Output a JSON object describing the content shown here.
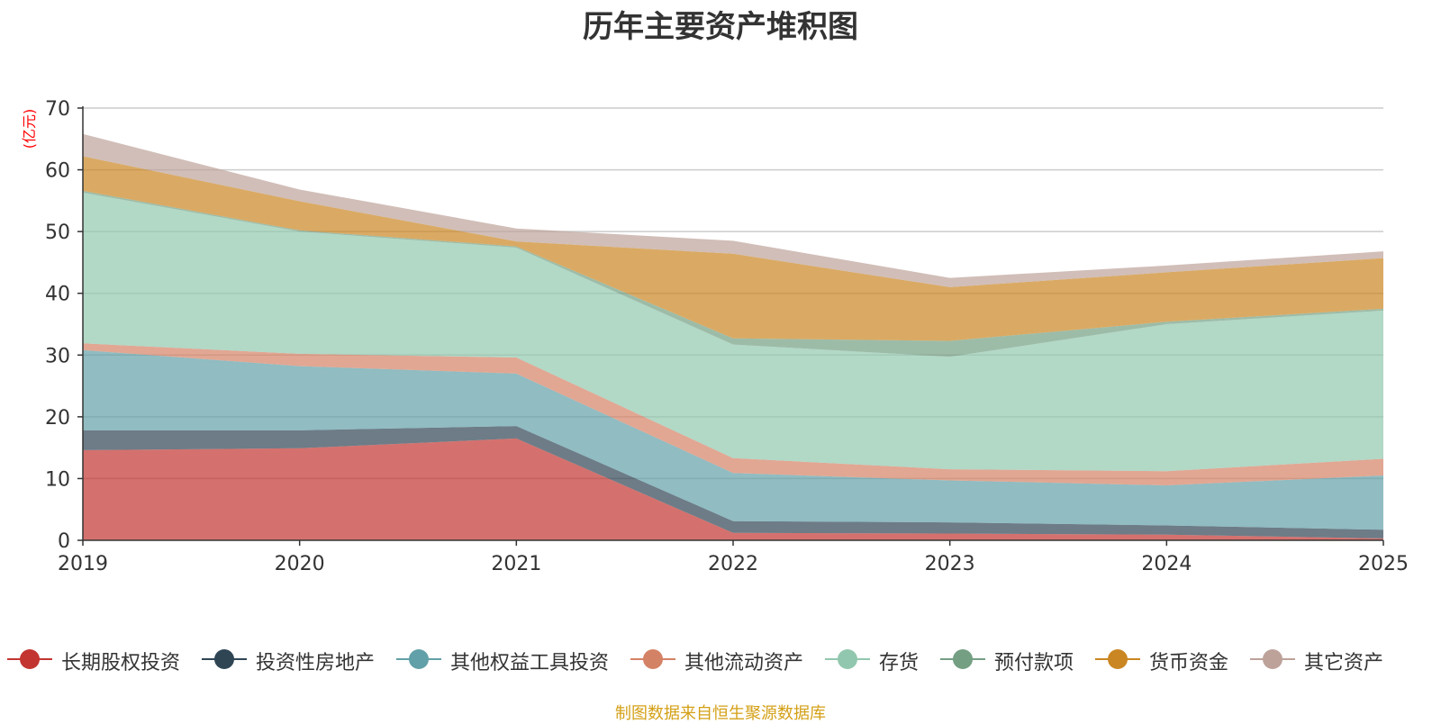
{
  "title": "历年主要资产堆积图",
  "source": "制图数据来自恒生聚源数据库",
  "chart_data": {
    "type": "area",
    "stacked": true,
    "title": "历年主要资产堆积图",
    "ylabel": "(亿元)",
    "xlabel": "",
    "ylim": [
      0,
      70
    ],
    "yticks": [
      0,
      10,
      20,
      30,
      40,
      50,
      60,
      70
    ],
    "grid": true,
    "legend_position": "bottom",
    "categories": [
      "2019",
      "2020",
      "2021",
      "2022",
      "2023",
      "2024",
      "2025"
    ],
    "series": [
      {
        "name": "长期股权投资",
        "color": "#c23531",
        "values": [
          14.6,
          14.9,
          16.5,
          1.2,
          1.1,
          0.9,
          0.3
        ]
      },
      {
        "name": "投资性房地产",
        "color": "#2f4554",
        "values": [
          3.2,
          2.9,
          2.0,
          1.9,
          1.8,
          1.5,
          1.4
        ]
      },
      {
        "name": "其他权益工具投资",
        "color": "#61a0a8",
        "values": [
          13.0,
          10.4,
          8.5,
          7.8,
          6.8,
          6.5,
          8.8
        ]
      },
      {
        "name": "其他流动资产",
        "color": "#d48265",
        "values": [
          1.1,
          2.0,
          2.6,
          2.4,
          1.8,
          2.3,
          2.7
        ]
      },
      {
        "name": "存货",
        "color": "#91c7ae",
        "values": [
          24.4,
          19.8,
          17.8,
          18.4,
          18.2,
          23.8,
          24.0
        ]
      },
      {
        "name": "预付款项",
        "color": "#749f83",
        "values": [
          0.3,
          0.2,
          0.2,
          1.0,
          2.6,
          0.4,
          0.3
        ]
      },
      {
        "name": "货币资金",
        "color": "#ca8622",
        "values": [
          5.6,
          4.7,
          0.8,
          13.7,
          8.7,
          8.0,
          8.2
        ]
      },
      {
        "name": "其它资产",
        "color": "#bda29a",
        "values": [
          3.6,
          1.9,
          2.1,
          2.1,
          1.5,
          1.1,
          1.1
        ]
      }
    ]
  }
}
